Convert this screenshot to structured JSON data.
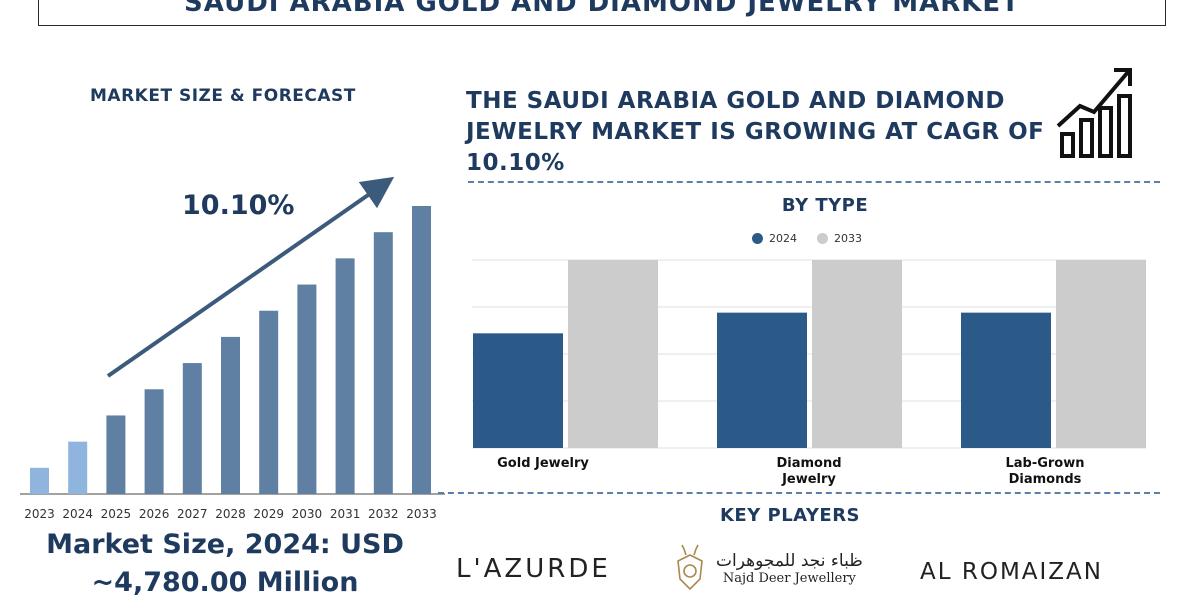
{
  "title": "Saudi Arabia Gold and Diamond Jewelry Market",
  "left_panel": {
    "heading": "MARKET SIZE & FORECAST",
    "cagr_label": "10.10%",
    "market_size_line1": "Market Size, 2024: USD",
    "market_size_line2": "~4,780.00 Million"
  },
  "right_panel": {
    "headline": "The Saudi Arabia Gold and Diamond Jewelry Market is growing at CAGR of 10.10%",
    "by_type_heading": "BY TYPE",
    "key_players_heading": "KEY PLAYERS",
    "key_players": {
      "lazurde": "L'AZURDE",
      "najd_arabic": "ظباء نجد للمجوهرات",
      "najd_english": "Najd Deer Jewellery",
      "romaizan": "AL ROMAIZAN"
    }
  },
  "colors": {
    "navy": "#1e3a5f",
    "series_2024": "#2b5a88",
    "series_2033": "#cccccc",
    "bar_light": "#8fb4de",
    "bar_dark": "#5f7fa3"
  },
  "chart_data": [
    {
      "type": "bar",
      "title": "MARKET SIZE & FORECAST",
      "categories": [
        "2023",
        "2024",
        "2025",
        "2026",
        "2027",
        "2028",
        "2029",
        "2030",
        "2031",
        "2032",
        "2033"
      ],
      "values": [
        1,
        2,
        3,
        4,
        5,
        6,
        7,
        8,
        9,
        10,
        11
      ],
      "annotation": "10.10%",
      "ylim": [
        0,
        11
      ],
      "grid": false,
      "note_values_relative": true
    },
    {
      "type": "bar",
      "title": "BY TYPE",
      "categories": [
        "Gold Jewelry",
        "Diamond Jewelry",
        "Lab-Grown Diamonds"
      ],
      "series": [
        {
          "name": "2024",
          "values": [
            61,
            72,
            72
          ]
        },
        {
          "name": "2033",
          "values": [
            100,
            100,
            100
          ]
        }
      ],
      "ylim": [
        0,
        100
      ],
      "grid": true,
      "legend": "top"
    }
  ]
}
